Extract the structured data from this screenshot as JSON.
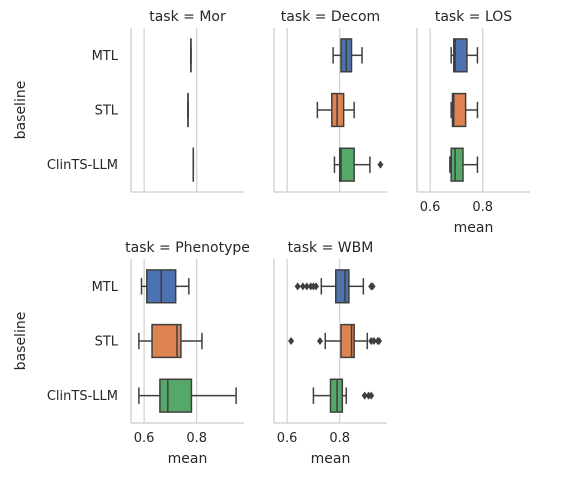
{
  "chart_data": {
    "type": "box",
    "layout": "facet-grid",
    "ylabel": "baseline",
    "xlabel": "mean",
    "categories": [
      "MTL",
      "STL",
      "ClinTS-LLM"
    ],
    "colors": {
      "MTL": "#4c72b0",
      "STL": "#dd8452",
      "ClinTS-LLM": "#55a868"
    },
    "xlim": [
      0.55,
      0.98
    ],
    "xticks": [
      0.6,
      0.8
    ],
    "xtick_labels": [
      "0.6",
      "0.8"
    ],
    "grid": "vertical",
    "panels": [
      {
        "title": "task = Mor",
        "boxes": [
          {
            "category": "MTL",
            "whislo": 0.778,
            "q1": 0.778,
            "med": 0.778,
            "q3": 0.778,
            "whishi": 0.778,
            "fliers": []
          },
          {
            "category": "STL",
            "whislo": 0.767,
            "q1": 0.767,
            "med": 0.767,
            "q3": 0.767,
            "whishi": 0.767,
            "fliers": []
          },
          {
            "category": "ClinTS-LLM",
            "whislo": 0.787,
            "q1": 0.787,
            "med": 0.787,
            "q3": 0.787,
            "whishi": 0.787,
            "fliers": []
          }
        ]
      },
      {
        "title": "task = Decom",
        "boxes": [
          {
            "category": "MTL",
            "whislo": 0.775,
            "q1": 0.805,
            "med": 0.825,
            "q3": 0.845,
            "whishi": 0.885,
            "fliers": []
          },
          {
            "category": "STL",
            "whislo": 0.715,
            "q1": 0.77,
            "med": 0.79,
            "q3": 0.815,
            "whishi": 0.855,
            "fliers": []
          },
          {
            "category": "ClinTS-LLM",
            "whislo": 0.78,
            "q1": 0.8,
            "med": 0.805,
            "q3": 0.855,
            "whishi": 0.915,
            "fliers": [
              0.955
            ]
          }
        ]
      },
      {
        "title": "task = LOS",
        "boxes": [
          {
            "category": "MTL",
            "whislo": 0.68,
            "q1": 0.69,
            "med": 0.695,
            "q3": 0.74,
            "whishi": 0.78,
            "fliers": []
          },
          {
            "category": "STL",
            "whislo": 0.68,
            "q1": 0.685,
            "med": 0.69,
            "q3": 0.735,
            "whishi": 0.78,
            "fliers": []
          },
          {
            "category": "ClinTS-LLM",
            "whislo": 0.675,
            "q1": 0.68,
            "med": 0.695,
            "q3": 0.725,
            "whishi": 0.78,
            "fliers": []
          }
        ]
      },
      {
        "title": "task = Phenotype",
        "boxes": [
          {
            "category": "MTL",
            "whislo": 0.59,
            "q1": 0.61,
            "med": 0.665,
            "q3": 0.72,
            "whishi": 0.77,
            "fliers": []
          },
          {
            "category": "STL",
            "whislo": 0.58,
            "q1": 0.63,
            "med": 0.725,
            "q3": 0.74,
            "whishi": 0.82,
            "fliers": []
          },
          {
            "category": "ClinTS-LLM",
            "whislo": 0.58,
            "q1": 0.66,
            "med": 0.69,
            "q3": 0.78,
            "whishi": 0.95,
            "fliers": []
          }
        ]
      },
      {
        "title": "task = WBM",
        "boxes": [
          {
            "category": "MTL",
            "whislo": 0.73,
            "q1": 0.785,
            "med": 0.82,
            "q3": 0.835,
            "whishi": 0.89,
            "fliers": [
              0.64,
              0.66,
              0.675,
              0.69,
              0.7,
              0.71,
              0.92,
              0.925
            ]
          },
          {
            "category": "STL",
            "whislo": 0.745,
            "q1": 0.805,
            "med": 0.845,
            "q3": 0.855,
            "whishi": 0.905,
            "fliers": [
              0.615,
              0.725,
              0.92,
              0.93,
              0.945,
              0.95
            ]
          },
          {
            "category": "ClinTS-LLM",
            "whislo": 0.7,
            "q1": 0.765,
            "med": 0.79,
            "q3": 0.81,
            "whishi": 0.825,
            "fliers": [
              0.895,
              0.91,
              0.92
            ]
          }
        ]
      }
    ]
  }
}
